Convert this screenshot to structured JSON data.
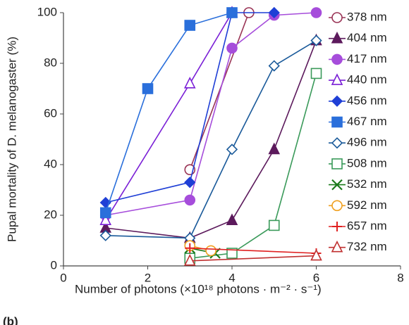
{
  "chart_data": {
    "type": "line",
    "y_label": "Pupal mortality of D. melanogaster (%)",
    "x_label": "Number of photons (×10¹⁸ photons · m⁻² · s⁻¹)",
    "annotation": "(b)",
    "xlim": [
      0,
      8
    ],
    "xticks": [
      0,
      2,
      4,
      6,
      8
    ],
    "ylim": [
      0,
      100
    ],
    "yticks": [
      0,
      20,
      40,
      60,
      80,
      100
    ],
    "grid": false,
    "legend": "right",
    "series": [
      {
        "name": "378 nm",
        "color": "#993355",
        "marker": "circle",
        "filled": false,
        "x": [
          3,
          4.4
        ],
        "values": [
          38,
          100
        ]
      },
      {
        "name": "404 nm",
        "color": "#5c1a5c",
        "marker": "triangle",
        "filled": true,
        "x": [
          1,
          3,
          4,
          5,
          6
        ],
        "values": [
          15,
          11,
          18,
          46,
          89
        ]
      },
      {
        "name": "417 nm",
        "color": "#a64ddb",
        "marker": "circle",
        "filled": true,
        "x": [
          1,
          3,
          4,
          5,
          6
        ],
        "values": [
          20,
          26,
          86,
          99,
          100
        ]
      },
      {
        "name": "440 nm",
        "color": "#7a1fd6",
        "marker": "triangle",
        "filled": false,
        "x": [
          1,
          3,
          4
        ],
        "values": [
          18,
          72,
          100
        ]
      },
      {
        "name": "456 nm",
        "color": "#1f3fd6",
        "marker": "diamond",
        "filled": true,
        "x": [
          1,
          3,
          4,
          5
        ],
        "values": [
          25,
          33,
          100,
          100
        ]
      },
      {
        "name": "467 nm",
        "color": "#2a6fdb",
        "marker": "square",
        "filled": true,
        "x": [
          1,
          2,
          3,
          4
        ],
        "values": [
          21,
          70,
          95,
          100
        ]
      },
      {
        "name": "496 nm",
        "color": "#1a5a9a",
        "marker": "diamond",
        "filled": false,
        "x": [
          1,
          3,
          4,
          5,
          6
        ],
        "values": [
          12,
          11,
          46,
          79,
          89
        ]
      },
      {
        "name": "508 nm",
        "color": "#3a9a5a",
        "marker": "square",
        "filled": false,
        "x": [
          3,
          4,
          5,
          6
        ],
        "values": [
          3,
          5,
          16,
          76
        ]
      },
      {
        "name": "532 nm",
        "color": "#1a7a1a",
        "marker": "x",
        "filled": true,
        "x": [
          3,
          3.6
        ],
        "values": [
          7,
          5
        ]
      },
      {
        "name": "592 nm",
        "color": "#f0a020",
        "marker": "circle",
        "filled": false,
        "x": [
          3,
          3.5
        ],
        "values": [
          8,
          6
        ]
      },
      {
        "name": "657 nm",
        "color": "#e02020",
        "marker": "plus",
        "filled": true,
        "x": [
          3,
          6
        ],
        "values": [
          7,
          5
        ]
      },
      {
        "name": "732 nm",
        "color": "#c03030",
        "marker": "triangle",
        "filled": false,
        "x": [
          3,
          6
        ],
        "values": [
          2,
          4
        ]
      }
    ]
  }
}
